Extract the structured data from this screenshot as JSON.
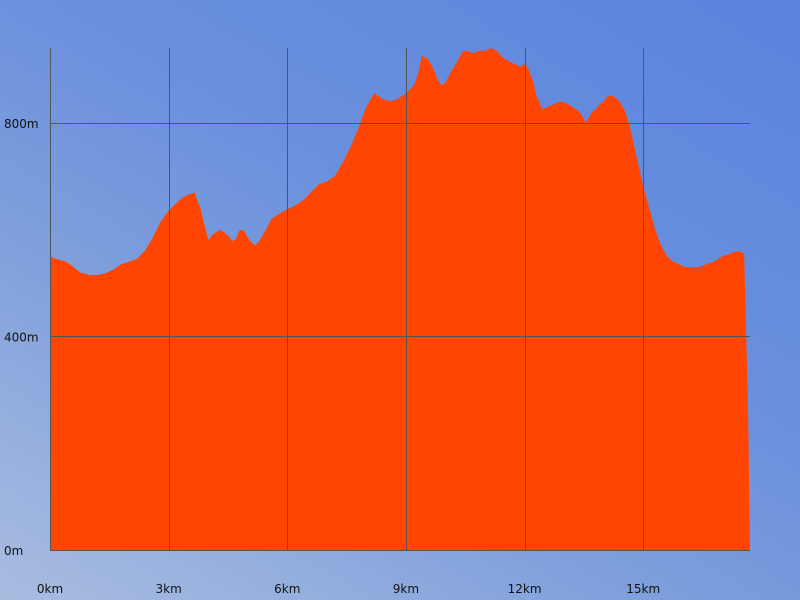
{
  "chart_data": {
    "type": "area",
    "title": "",
    "xlabel": "",
    "ylabel": "",
    "fill_color": "#ff4500",
    "grid_color": "#555555",
    "grid": true,
    "xlim": [
      0,
      17.7
    ],
    "ylim": [
      0,
      940
    ],
    "x_ticks": [
      {
        "value": 0,
        "label": "0km"
      },
      {
        "value": 3,
        "label": "3km"
      },
      {
        "value": 6,
        "label": "6km"
      },
      {
        "value": 9,
        "label": "9km"
      },
      {
        "value": 12,
        "label": "12km"
      },
      {
        "value": 15,
        "label": "15km"
      }
    ],
    "y_ticks": [
      {
        "value": 0,
        "label": "0m"
      },
      {
        "value": 400,
        "label": "400m"
      },
      {
        "value": 800,
        "label": "800m"
      }
    ],
    "series": [
      {
        "x": [
          0,
          0.15,
          0.4,
          0.6,
          0.75,
          1.0,
          1.2,
          1.4,
          1.6,
          1.8,
          2.0,
          2.2,
          2.4,
          2.6,
          2.8,
          3.0,
          3.2,
          3.35,
          3.5,
          3.65,
          3.8,
          3.9,
          4.0,
          4.1,
          4.3,
          4.45,
          4.55,
          4.6,
          4.7,
          4.8,
          4.9,
          5.0,
          5.1,
          5.2,
          5.3,
          5.45,
          5.6,
          5.8,
          6.0,
          6.2,
          6.4,
          6.6,
          6.8,
          7.0,
          7.2,
          7.4,
          7.6,
          7.8,
          8.0,
          8.2,
          8.4,
          8.6,
          8.8,
          9.0,
          9.2,
          9.3,
          9.4,
          9.55,
          9.7,
          9.8,
          9.9,
          10.0,
          10.1,
          10.3,
          10.45,
          10.55,
          10.7,
          10.85,
          11.0,
          11.15,
          11.3,
          11.4,
          11.5,
          11.6,
          11.75,
          11.9,
          12.0,
          12.1,
          12.2,
          12.3,
          12.45,
          12.6,
          12.75,
          12.9,
          13.1,
          13.3,
          13.4,
          13.55,
          13.7,
          13.8,
          13.9,
          14.0,
          14.1,
          14.25,
          14.4,
          14.55,
          14.7,
          14.85,
          15.0,
          15.15,
          15.3,
          15.45,
          15.6,
          15.75,
          15.9,
          16.05,
          16.2,
          16.4,
          16.6,
          16.8,
          17.0,
          17.2,
          17.4,
          17.55,
          17.65,
          17.7
        ],
        "values": [
          550,
          545,
          540,
          530,
          520,
          515,
          515,
          518,
          525,
          535,
          540,
          545,
          560,
          585,
          615,
          635,
          650,
          660,
          665,
          670,
          640,
          610,
          580,
          590,
          600,
          592,
          585,
          578,
          582,
          600,
          598,
          585,
          575,
          570,
          580,
          598,
          620,
          630,
          638,
          645,
          655,
          670,
          685,
          690,
          700,
          725,
          755,
          790,
          830,
          855,
          845,
          840,
          845,
          855,
          870,
          890,
          925,
          920,
          900,
          880,
          870,
          875,
          890,
          915,
          935,
          935,
          930,
          935,
          935,
          940,
          935,
          925,
          920,
          915,
          910,
          905,
          910,
          900,
          880,
          850,
          825,
          830,
          835,
          840,
          835,
          825,
          820,
          800,
          820,
          825,
          835,
          840,
          850,
          850,
          840,
          820,
          780,
          730,
          680,
          640,
          600,
          570,
          550,
          540,
          535,
          530,
          530,
          530,
          535,
          540,
          550,
          555,
          560,
          555,
          270,
          0
        ]
      }
    ]
  }
}
